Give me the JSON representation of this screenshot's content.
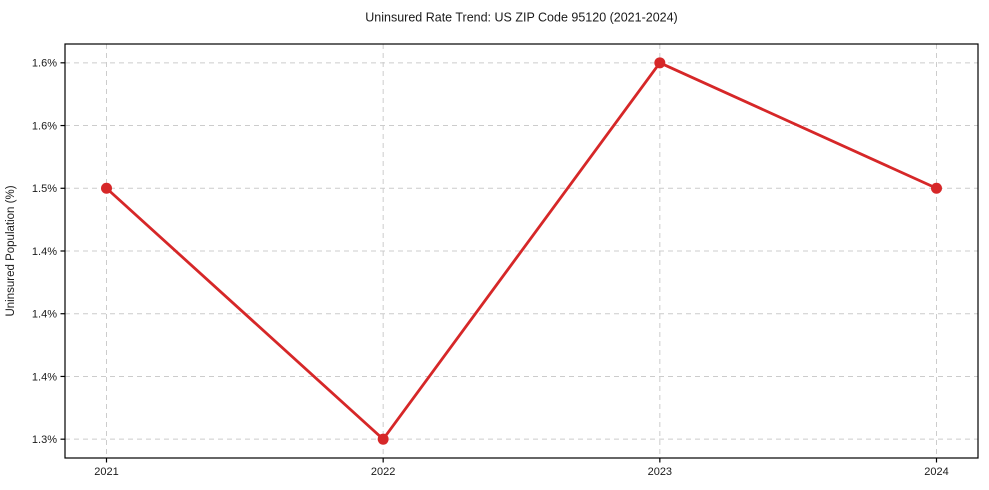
{
  "figure": {
    "title": "Uninsured Rate Trend: US ZIP Code 95120 (2021-2024)",
    "ylabel": "Uninsured Population (%)"
  },
  "chart_data": {
    "type": "line",
    "title": "Uninsured Rate Trend: US ZIP Code 95120 (2021-2024)",
    "xlabel": "",
    "ylabel": "Uninsured Population (%)",
    "categories": [
      "2021",
      "2022",
      "2023",
      "2024"
    ],
    "x": [
      2021,
      2022,
      2023,
      2024
    ],
    "series": [
      {
        "name": "Uninsured Population (%)",
        "values": [
          1.5,
          1.3,
          1.6,
          1.5
        ],
        "color": "#d62728",
        "marker": "circle",
        "line_width": 2.8,
        "marker_size": 5.5
      }
    ],
    "xlim": [
      2020.85,
      2024.15
    ],
    "ylim": [
      1.285,
      1.615
    ],
    "x_ticks": [
      {
        "value": 2021,
        "label": "2021"
      },
      {
        "value": 2022,
        "label": "2022"
      },
      {
        "value": 2023,
        "label": "2023"
      },
      {
        "value": 2024,
        "label": "2024"
      }
    ],
    "y_ticks": [
      {
        "value": 1.6,
        "label": "1.6%"
      },
      {
        "value": 1.55,
        "label": "1.6%"
      },
      {
        "value": 1.5,
        "label": "1.5%"
      },
      {
        "value": 1.45,
        "label": "1.4%"
      },
      {
        "value": 1.4,
        "label": "1.4%"
      },
      {
        "value": 1.35,
        "label": "1.4%"
      },
      {
        "value": 1.3,
        "label": "1.3%"
      }
    ],
    "grid": true,
    "grid_line_style": "dashed",
    "legend_position": "none"
  },
  "colors": {
    "line": "#d62728",
    "grid": "#cccccc",
    "axis": "#000000",
    "text": "#1a1a1a",
    "background": "#ffffff"
  }
}
